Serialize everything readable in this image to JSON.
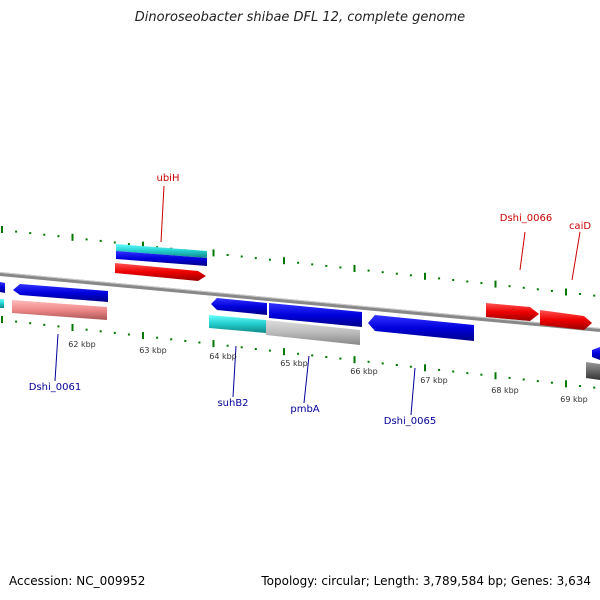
{
  "title": "Dinoroseobacter shibae DFL 12, complete genome",
  "accession_label": "Accession: NC_009952",
  "summary_label": "Topology: circular; Length: 3,789,584 bp; Genes: 3,634",
  "colors": {
    "blue_feature": "#0000dd",
    "red_feature": "#ee0000",
    "cyan_feature": "#22cccc",
    "gray_feature": "#bbbbbb",
    "pink_feature": "#ee8888",
    "tick_green": "#007700",
    "backbone": "#888888",
    "label_red": "#cc0000",
    "label_blue": "#000099"
  },
  "scale_labels": [
    "62 kbp",
    "63 kbp",
    "64 kbp",
    "65 kbp",
    "66 kbp",
    "67 kbp",
    "68 kbp",
    "69 kbp"
  ],
  "gene_labels": [
    {
      "text": "ubiH",
      "color": "red"
    },
    {
      "text": "Dshi_0066",
      "color": "red"
    },
    {
      "text": "caiD",
      "color": "red"
    },
    {
      "text": "Dshi_0061",
      "color": "blue"
    },
    {
      "text": "suhB2",
      "color": "blue"
    },
    {
      "text": "pmbA",
      "color": "blue"
    },
    {
      "text": "Dshi_0065",
      "color": "blue"
    }
  ]
}
